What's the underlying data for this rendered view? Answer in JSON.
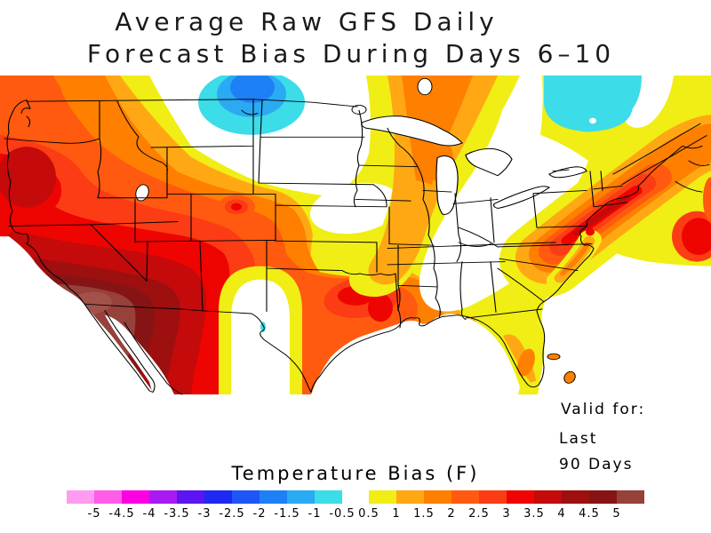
{
  "title": {
    "line1": "Average Raw GFS Daily",
    "line2": "Forecast Bias During Days 6–10"
  },
  "map_annotation": {
    "valid_for": "Valid for:",
    "period_line1": "Last",
    "period_line2": "90 Days"
  },
  "colorbar": {
    "title": "Temperature Bias (F)",
    "negative_labels": [
      "-5",
      "-4.5",
      "-4",
      "-3.5",
      "-3",
      "-2.5",
      "-2",
      "-1.5",
      "-1",
      "-0.5"
    ],
    "positive_labels": [
      "0.5",
      "1",
      "1.5",
      "2",
      "2.5",
      "3",
      "3.5",
      "4",
      "4.5",
      "5"
    ]
  },
  "palette": {
    "white": "#ffffff",
    "outline": "#000000",
    "n1": "#ff9cf0",
    "n2": "#ff5ce8",
    "n3": "#fb00e2",
    "n4": "#a81af2",
    "n5": "#5c14f0",
    "n6": "#1e2af2",
    "n7": "#1e55f5",
    "n8": "#1e80f5",
    "n9": "#2aaaf2",
    "n10": "#3cdce8",
    "p1": "#f0ee14",
    "p2": "#ffa814",
    "p3": "#ff7f00",
    "p4": "#ff5a0f",
    "p5": "#fb3c14",
    "p6": "#ee0400",
    "p7": "#c40a0a",
    "p8": "#9e0f0f",
    "p9": "#871414",
    "p10": "#96413a",
    "brown_light": "#a3524a"
  },
  "chart_data": {
    "type": "heatmap",
    "subtype": "filled-contour-weather-map",
    "title": "Average Raw GFS Daily Forecast Bias During Days 6–10",
    "legend_title": "Temperature Bias (F)",
    "units": "degrees F",
    "contour_levels": [
      -5,
      -4.5,
      -4,
      -3.5,
      -3,
      -2.5,
      -2,
      -1.5,
      -1,
      -0.5,
      0.5,
      1,
      1.5,
      2,
      2.5,
      3,
      3.5,
      4,
      4.5,
      5
    ],
    "valid_period": "Last 90 Days",
    "regions": [
      {
        "area": "Southern California / Arizona / Sonora",
        "bias": 5.0
      },
      {
        "area": "Nevada / Utah / New Mexico",
        "bias": 3.5
      },
      {
        "area": "Oregon (SW blob)",
        "bias": 3.5
      },
      {
        "area": "Washington / Pacific Northwest",
        "bias": 2.5
      },
      {
        "area": "Colorado (local spot)",
        "bias": 3.0
      },
      {
        "area": "Central Plains (Kansas / Nebraska)",
        "bias": 1.0
      },
      {
        "area": "Southern Oklahoma / East Texas",
        "bias": 3.0
      },
      {
        "area": "West Texas (hole)",
        "bias": 0.0
      },
      {
        "area": "Iowa / upper Midwest",
        "bias": 0.0
      },
      {
        "area": "Eastern Montana / Dakotas",
        "bias": 0.0
      },
      {
        "area": "North Dakota / Montana border blob",
        "bias": -2.0
      },
      {
        "area": "Southern Quebec / Ontario blob",
        "bias": -1.0
      },
      {
        "area": "Great Lakes / Ohio Valley / interior Southeast",
        "bias": 0.0
      },
      {
        "area": "Wisconsin–Illinois–Missouri warm band",
        "bias": 1.5
      },
      {
        "area": "New England / Mid-Atlantic coast",
        "bias": 4.0
      },
      {
        "area": "Maine / New Brunswick",
        "bias": 2.0
      },
      {
        "area": "Nova Scotia",
        "bias": 3.0
      },
      {
        "area": "Coastal Carolinas / Virginia",
        "bias": 2.0
      },
      {
        "area": "South Florida",
        "bias": 2.0
      },
      {
        "area": "Gulf Coast (Louisiana / Mississippi)",
        "bias": 1.5
      },
      {
        "area": "Big Bend Texas (tiny spot)",
        "bias": -1.0
      }
    ]
  }
}
